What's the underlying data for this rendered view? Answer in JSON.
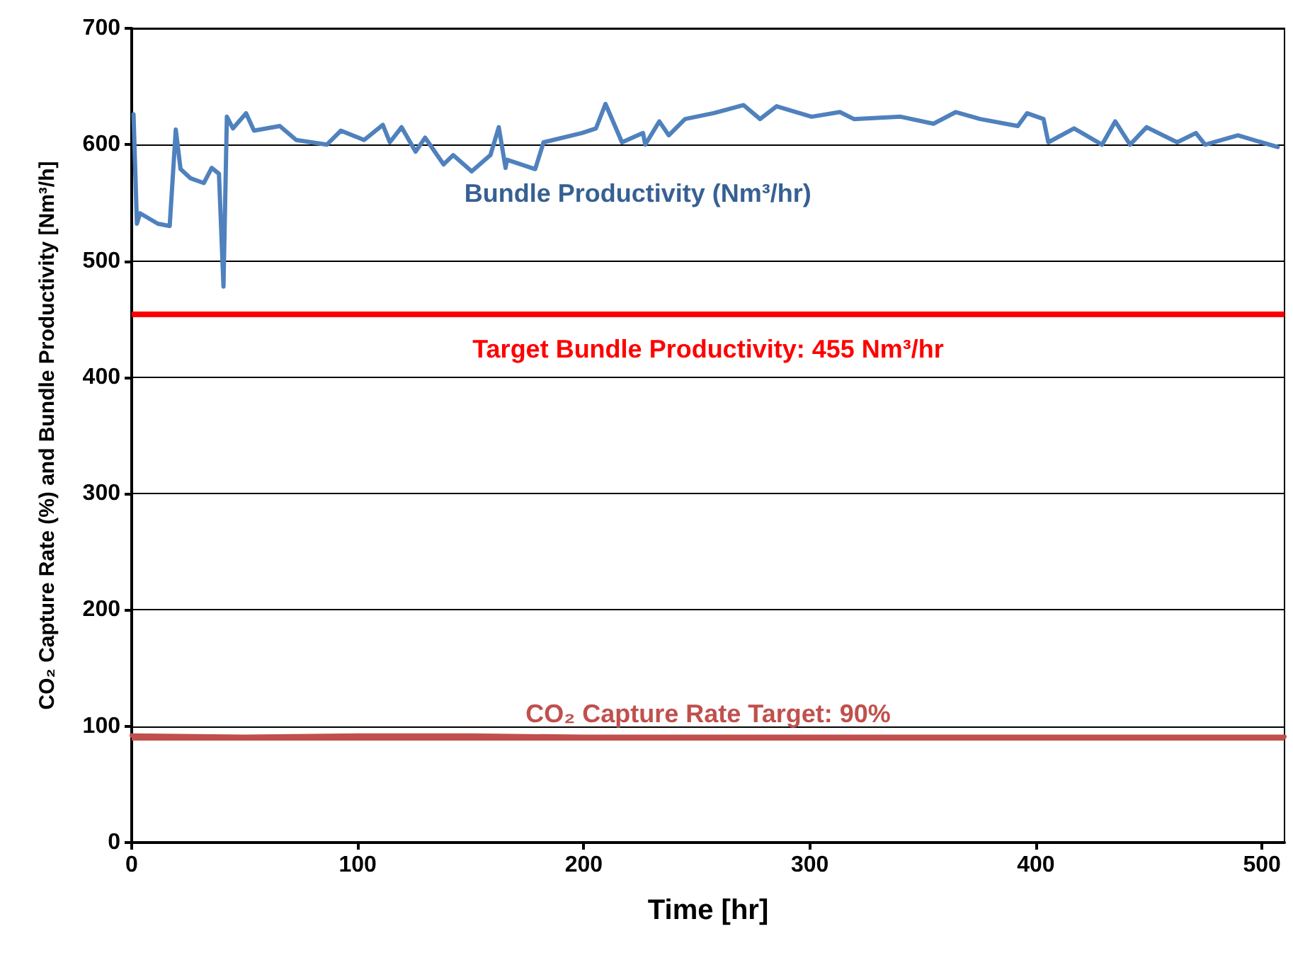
{
  "chart_data": {
    "type": "line",
    "xlabel": "Time [hr]",
    "ylabel": "CO₂ Capture Rate (%) and Bundle Productivity [Nm³/h]",
    "xlim": [
      0,
      510
    ],
    "xticks": [
      0,
      100,
      200,
      300,
      400,
      500
    ],
    "ylim": [
      0,
      700
    ],
    "yticks": [
      0,
      100,
      200,
      300,
      400,
      500,
      600,
      700
    ],
    "grid": "y",
    "legend": false,
    "marker": "none",
    "line_style": "solid",
    "series": [
      {
        "name": "Bundle Productivity (Nm³/hr)",
        "color": "#4f81bd",
        "x": [
          0.8,
          2.3,
          3.7,
          11.6,
          16.8,
          19.5,
          21.6,
          26.1,
          31.9,
          35.4,
          38.6,
          40.6,
          42.1,
          44.8,
          50.6,
          54.1,
          65.5,
          72.8,
          86.3,
          92.5,
          102.8,
          111.1,
          114.2,
          119.4,
          125.6,
          129.8,
          138,
          142.2,
          150.4,
          158.7,
          162.4,
          165.4,
          166,
          178.5,
          182.2,
          199.2,
          205.4,
          209.6,
          216.9,
          226.2,
          227.2,
          233.4,
          237.6,
          244.8,
          257.3,
          270.7,
          278,
          285.3,
          300.8,
          313.3,
          319.5,
          340.2,
          354.7,
          364.6,
          375.4,
          392,
          396.1,
          403.4,
          405.5,
          416.9,
          429.3,
          435.1,
          441.7,
          449,
          462.5,
          470.8,
          474.9,
          489.4,
          499.8,
          507
        ],
        "values": [
          626,
          532,
          541,
          532,
          530,
          613,
          579,
          571,
          567,
          580,
          575,
          478,
          624,
          614,
          627,
          612,
          616,
          604,
          600,
          612,
          604,
          617,
          602,
          615,
          594,
          606,
          583,
          591,
          577,
          591,
          615,
          580,
          587,
          579,
          602,
          610,
          614,
          635,
          602,
          610,
          600,
          620,
          608,
          622,
          627,
          634,
          622,
          633,
          624,
          628,
          622,
          624,
          618,
          628,
          622,
          616,
          627,
          622,
          602,
          614,
          600,
          620,
          600,
          615,
          602,
          610,
          600,
          608,
          602,
          598
        ]
      },
      {
        "color": "#c0504d",
        "x": [
          0,
          50,
          100,
          150,
          200,
          250,
          300,
          350,
          400,
          450,
          510
        ],
        "values": [
          92,
          91,
          92,
          92,
          91,
          91,
          91,
          91,
          91,
          91,
          91
        ]
      }
    ],
    "ref_lines": [
      {
        "axis": "y",
        "value": 455,
        "label": "Target Bundle Productivity: 455 Nm³/hr",
        "color": "#ff0000"
      },
      {
        "axis": "y",
        "value": 90,
        "label": "CO₂ Capture Rate Target: 90%",
        "color": "#c0504d"
      }
    ]
  }
}
